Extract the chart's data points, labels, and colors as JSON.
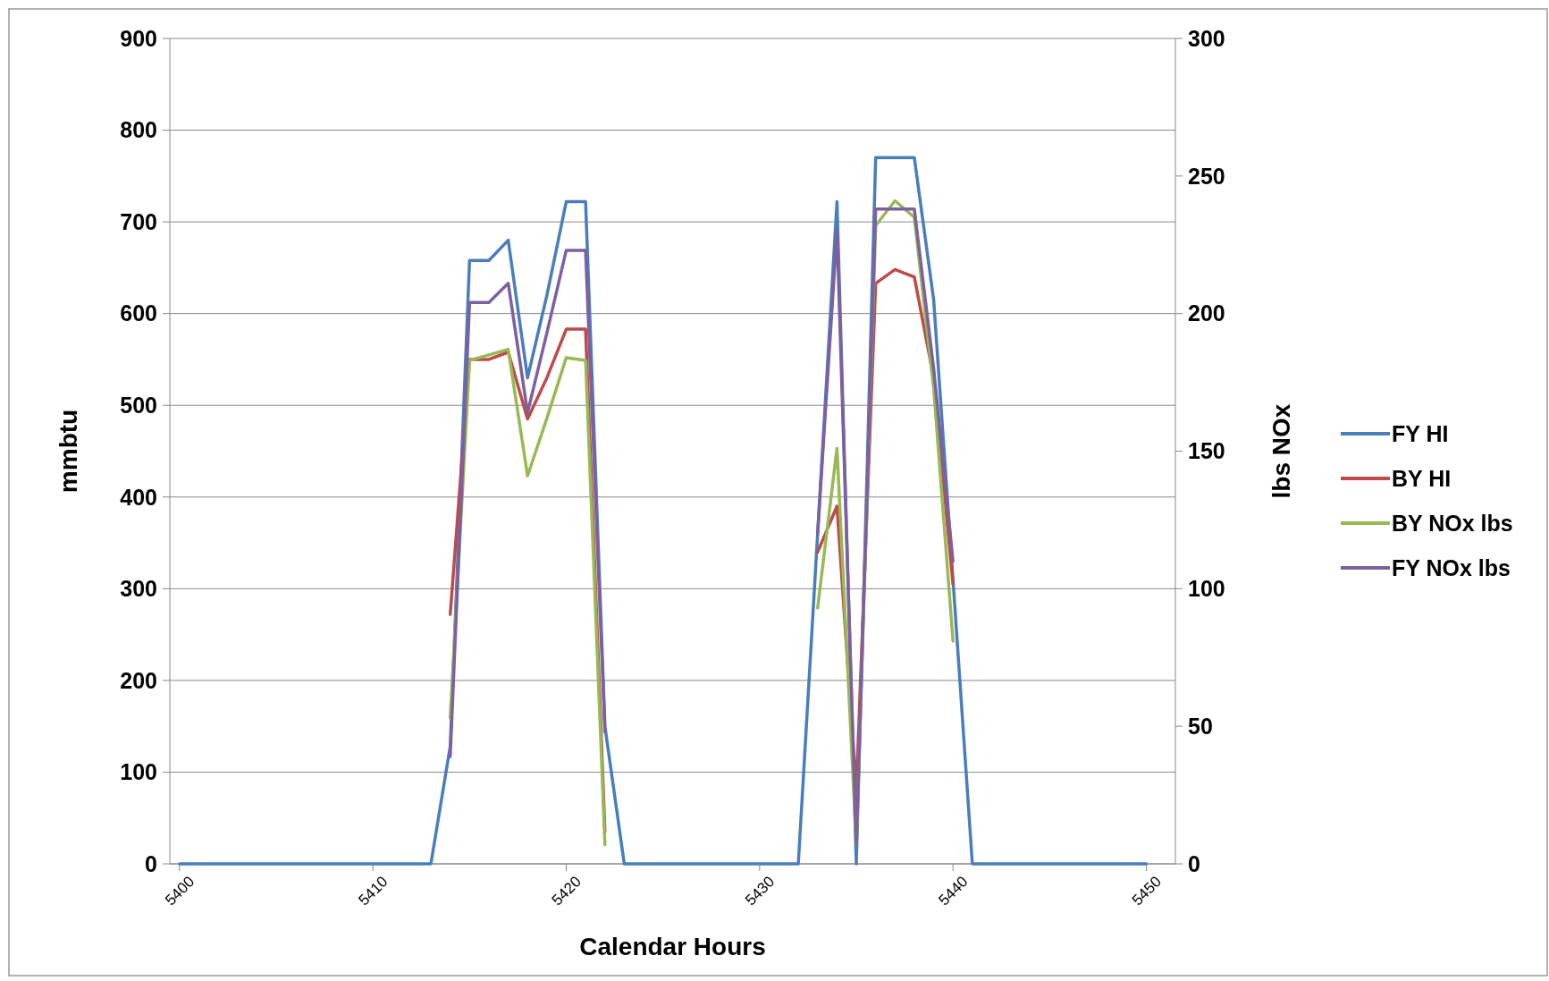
{
  "chart_data": {
    "type": "line",
    "xlabel": "Calendar Hours",
    "ylabel": "mmbtu",
    "y2label": "lbs NOx",
    "x": [
      5400,
      5401,
      5402,
      5403,
      5404,
      5405,
      5406,
      5407,
      5408,
      5409,
      5410,
      5411,
      5412,
      5413,
      5414,
      5415,
      5416,
      5417,
      5418,
      5419,
      5420,
      5421,
      5422,
      5423,
      5424,
      5425,
      5426,
      5427,
      5428,
      5429,
      5430,
      5431,
      5432,
      5433,
      5434,
      5435,
      5436,
      5437,
      5438,
      5439,
      5440,
      5441,
      5442,
      5443,
      5444,
      5445,
      5446,
      5447,
      5448,
      5449,
      5450
    ],
    "series": [
      {
        "name": "FY HI",
        "color": "#4a7ebb",
        "values": [
          0,
          0,
          0,
          0,
          0,
          0,
          0,
          0,
          0,
          0,
          0,
          0,
          0,
          0,
          128,
          658,
          658,
          680,
          530,
          620,
          722,
          722,
          150,
          0,
          0,
          0,
          0,
          0,
          0,
          0,
          0,
          0,
          0,
          360,
          722,
          0,
          770,
          770,
          770,
          615,
          310,
          0,
          0,
          0,
          0,
          0,
          0,
          0,
          0,
          0,
          0
        ]
      },
      {
        "name": "BY HI",
        "color": "#be4b48",
        "values": [
          null,
          null,
          null,
          null,
          null,
          null,
          null,
          null,
          null,
          null,
          null,
          null,
          null,
          null,
          272,
          550,
          550,
          558,
          485,
          530,
          583,
          583,
          35,
          null,
          null,
          null,
          null,
          null,
          null,
          null,
          null,
          null,
          null,
          340,
          390,
          80,
          633,
          648,
          640,
          530,
          305,
          null,
          null,
          null,
          null,
          null,
          null,
          null,
          null,
          null,
          null
        ]
      },
      {
        "name": "BY NOx lbs",
        "color": "#98b954",
        "axis": "y2",
        "values": [
          null,
          null,
          null,
          null,
          null,
          null,
          null,
          null,
          null,
          null,
          null,
          null,
          null,
          null,
          53,
          183,
          185,
          187,
          141,
          162,
          184,
          183,
          7,
          null,
          null,
          null,
          null,
          null,
          null,
          null,
          null,
          null,
          null,
          93,
          151,
          7,
          232,
          241,
          235,
          173,
          81,
          null,
          null,
          null,
          null,
          null,
          null,
          null,
          null,
          null,
          null
        ]
      },
      {
        "name": "FY NOx lbs",
        "color": "#7d60a0",
        "axis": "y2",
        "values": [
          null,
          null,
          null,
          null,
          null,
          null,
          null,
          null,
          null,
          null,
          null,
          null,
          null,
          null,
          39,
          204,
          204,
          211,
          164,
          193,
          223,
          223,
          48,
          null,
          null,
          null,
          null,
          null,
          null,
          null,
          null,
          null,
          null,
          120,
          230,
          7,
          238,
          238,
          238,
          180,
          110,
          null,
          null,
          null,
          null,
          null,
          null,
          null,
          null,
          null,
          null
        ]
      }
    ],
    "xlim": [
      5399.5,
      5451.5
    ],
    "xticks": [
      5400,
      5410,
      5420,
      5430,
      5440,
      5450
    ],
    "ylim": [
      0,
      900
    ],
    "yticks": [
      0,
      100,
      200,
      300,
      400,
      500,
      600,
      700,
      800,
      900
    ],
    "y2lim": [
      0,
      300
    ],
    "y2ticks": [
      0,
      50,
      100,
      150,
      200,
      250,
      300
    ],
    "grid": "y",
    "legend": "right",
    "marker": "none",
    "line_style": "solid"
  }
}
